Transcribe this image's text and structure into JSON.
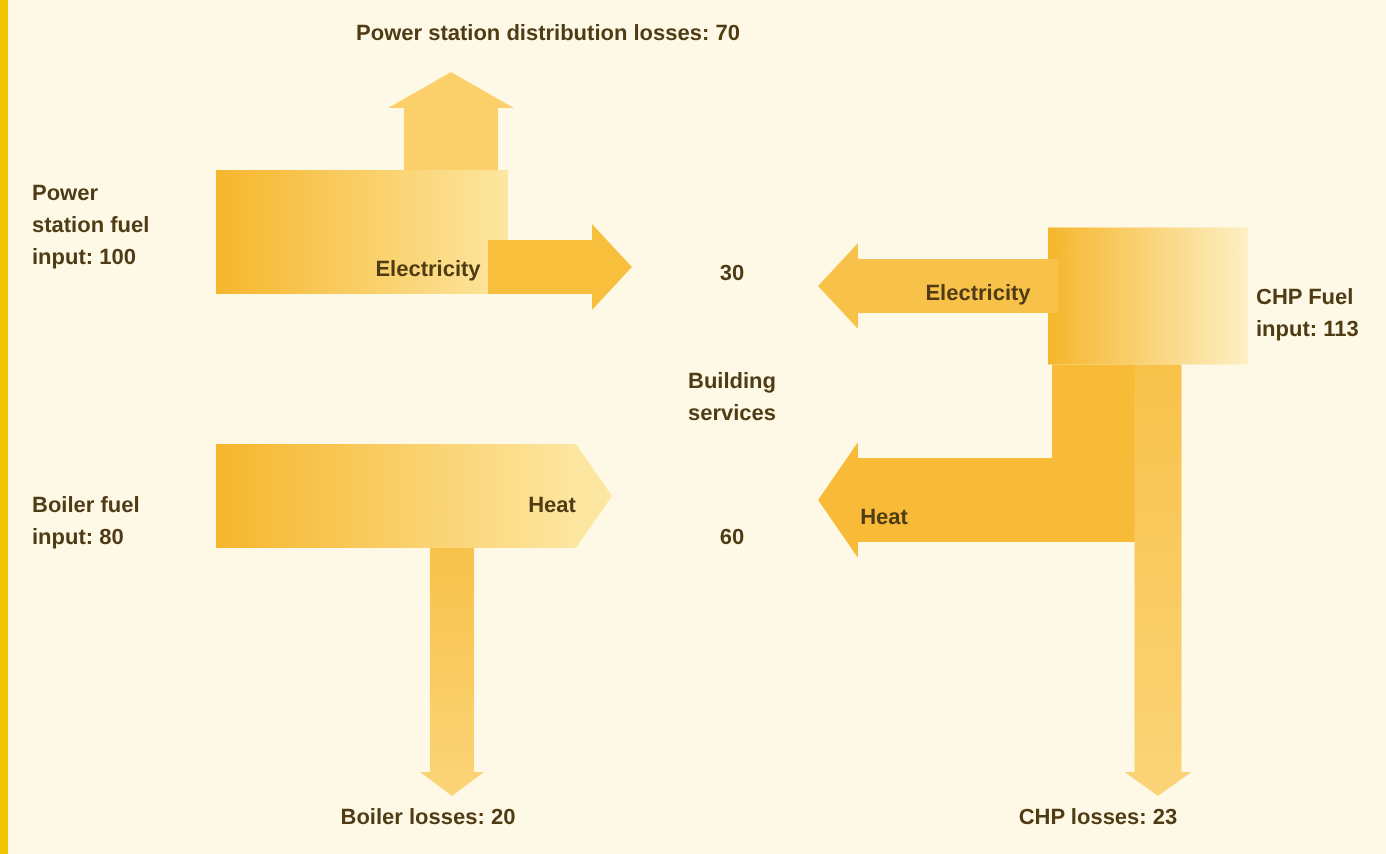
{
  "chart_data": {
    "type": "other",
    "categories": [
      "Power station fuel input",
      "Power station distribution losses",
      "Boiler fuel input",
      "Boiler losses",
      "CHP Fuel input",
      "CHP losses"
    ],
    "value_labels": [
      ": 100",
      ": 70",
      ": 80",
      ": 20",
      ": 113",
      ": 23"
    ],
    "values": [
      100,
      70,
      80,
      20,
      113,
      23
    ],
    "annotations": [
      "Building services",
      "Electricity",
      "Heat",
      "Electricity",
      "Heat",
      "30",
      "60"
    ]
  }
}
